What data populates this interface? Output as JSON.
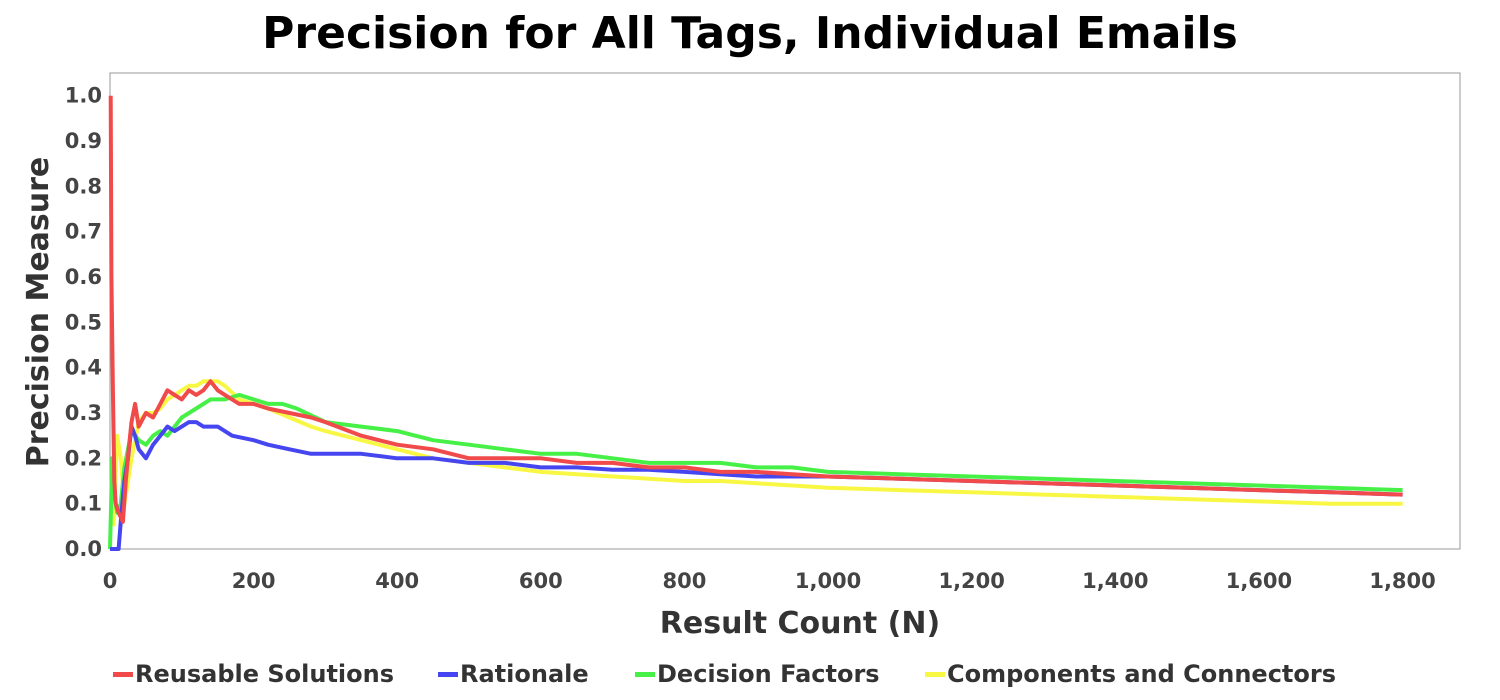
{
  "chart_data": {
    "type": "line",
    "title": "Precision for All Tags, Individual Emails",
    "xlabel": "Result Count (N)",
    "ylabel": "Precision Measure",
    "xlim": [
      0,
      1880
    ],
    "ylim": [
      0,
      1.05
    ],
    "x_ticks": [
      0,
      200,
      400,
      600,
      800,
      1000,
      1200,
      1400,
      1600,
      1800
    ],
    "x_tick_labels": [
      "0",
      "200",
      "400",
      "600",
      "800",
      "1,000",
      "1,200",
      "1,400",
      "1,600",
      "1,800"
    ],
    "y_ticks": [
      0.0,
      0.1,
      0.2,
      0.3,
      0.4,
      0.5,
      0.6,
      0.7,
      0.8,
      0.9,
      1.0
    ],
    "y_tick_labels": [
      "0.0",
      "0.1",
      "0.2",
      "0.3",
      "0.4",
      "0.5",
      "0.6",
      "0.7",
      "0.8",
      "0.9",
      "1.0"
    ],
    "grid": false,
    "legend_position": "bottom",
    "series": [
      {
        "name": "Reusable Solutions",
        "color": "#f04a4a",
        "x": [
          1,
          2,
          4,
          6,
          8,
          12,
          18,
          22,
          26,
          30,
          35,
          40,
          50,
          60,
          70,
          80,
          90,
          100,
          110,
          120,
          130,
          140,
          150,
          160,
          180,
          200,
          220,
          250,
          280,
          300,
          350,
          400,
          450,
          500,
          550,
          600,
          650,
          700,
          750,
          800,
          850,
          900,
          950,
          1000,
          1100,
          1200,
          1300,
          1400,
          1500,
          1600,
          1700,
          1800
        ],
        "y": [
          1.0,
          0.6,
          0.35,
          0.15,
          0.1,
          0.08,
          0.06,
          0.15,
          0.22,
          0.28,
          0.32,
          0.27,
          0.3,
          0.29,
          0.32,
          0.35,
          0.34,
          0.33,
          0.35,
          0.34,
          0.35,
          0.37,
          0.35,
          0.34,
          0.32,
          0.32,
          0.31,
          0.3,
          0.29,
          0.28,
          0.25,
          0.23,
          0.22,
          0.2,
          0.2,
          0.2,
          0.19,
          0.19,
          0.18,
          0.18,
          0.17,
          0.17,
          0.165,
          0.16,
          0.155,
          0.15,
          0.145,
          0.14,
          0.135,
          0.13,
          0.125,
          0.12
        ]
      },
      {
        "name": "Rationale",
        "color": "#4646f0",
        "x": [
          0,
          8,
          12,
          16,
          20,
          25,
          30,
          35,
          40,
          50,
          60,
          70,
          80,
          90,
          100,
          110,
          120,
          130,
          150,
          170,
          200,
          220,
          250,
          280,
          300,
          350,
          400,
          450,
          500,
          550,
          600,
          650,
          700,
          750,
          800,
          850,
          900,
          950,
          1000,
          1100,
          1200,
          1300,
          1400,
          1500,
          1600,
          1700,
          1800
        ],
        "y": [
          0.0,
          0.0,
          0.0,
          0.08,
          0.15,
          0.2,
          0.27,
          0.25,
          0.22,
          0.2,
          0.23,
          0.25,
          0.27,
          0.26,
          0.27,
          0.28,
          0.28,
          0.27,
          0.27,
          0.25,
          0.24,
          0.23,
          0.22,
          0.21,
          0.21,
          0.21,
          0.2,
          0.2,
          0.19,
          0.19,
          0.18,
          0.18,
          0.175,
          0.175,
          0.17,
          0.165,
          0.16,
          0.16,
          0.16,
          0.155,
          0.15,
          0.145,
          0.14,
          0.135,
          0.13,
          0.125,
          0.12
        ]
      },
      {
        "name": "Decision Factors",
        "color": "#46f046",
        "x": [
          0,
          3,
          6,
          10,
          15,
          20,
          25,
          30,
          40,
          50,
          60,
          70,
          80,
          90,
          100,
          120,
          140,
          160,
          180,
          200,
          220,
          240,
          260,
          300,
          350,
          400,
          450,
          500,
          550,
          600,
          650,
          700,
          750,
          800,
          850,
          900,
          950,
          1000,
          1100,
          1200,
          1300,
          1400,
          1500,
          1600,
          1700,
          1800
        ],
        "y": [
          0.0,
          0.2,
          0.12,
          0.08,
          0.1,
          0.18,
          0.22,
          0.26,
          0.24,
          0.23,
          0.25,
          0.26,
          0.25,
          0.27,
          0.29,
          0.31,
          0.33,
          0.33,
          0.34,
          0.33,
          0.32,
          0.32,
          0.31,
          0.28,
          0.27,
          0.26,
          0.24,
          0.23,
          0.22,
          0.21,
          0.21,
          0.2,
          0.19,
          0.19,
          0.19,
          0.18,
          0.18,
          0.17,
          0.165,
          0.16,
          0.155,
          0.15,
          0.145,
          0.14,
          0.135,
          0.13
        ]
      },
      {
        "name": "Components and Connectors",
        "color": "#f8f844",
        "x": [
          5,
          10,
          15,
          20,
          25,
          30,
          40,
          50,
          60,
          70,
          80,
          90,
          100,
          110,
          120,
          130,
          140,
          150,
          160,
          180,
          200,
          220,
          250,
          280,
          300,
          350,
          400,
          450,
          500,
          550,
          600,
          650,
          700,
          750,
          800,
          850,
          900,
          950,
          1000,
          1100,
          1200,
          1300,
          1400,
          1500,
          1600,
          1700,
          1800
        ],
        "y": [
          0.05,
          0.25,
          0.2,
          0.1,
          0.15,
          0.2,
          0.28,
          0.3,
          0.3,
          0.31,
          0.33,
          0.34,
          0.35,
          0.36,
          0.36,
          0.37,
          0.37,
          0.37,
          0.36,
          0.33,
          0.32,
          0.31,
          0.29,
          0.27,
          0.26,
          0.24,
          0.22,
          0.2,
          0.19,
          0.18,
          0.17,
          0.165,
          0.16,
          0.155,
          0.15,
          0.15,
          0.145,
          0.14,
          0.135,
          0.13,
          0.125,
          0.12,
          0.115,
          0.11,
          0.105,
          0.1,
          0.1
        ]
      }
    ]
  }
}
